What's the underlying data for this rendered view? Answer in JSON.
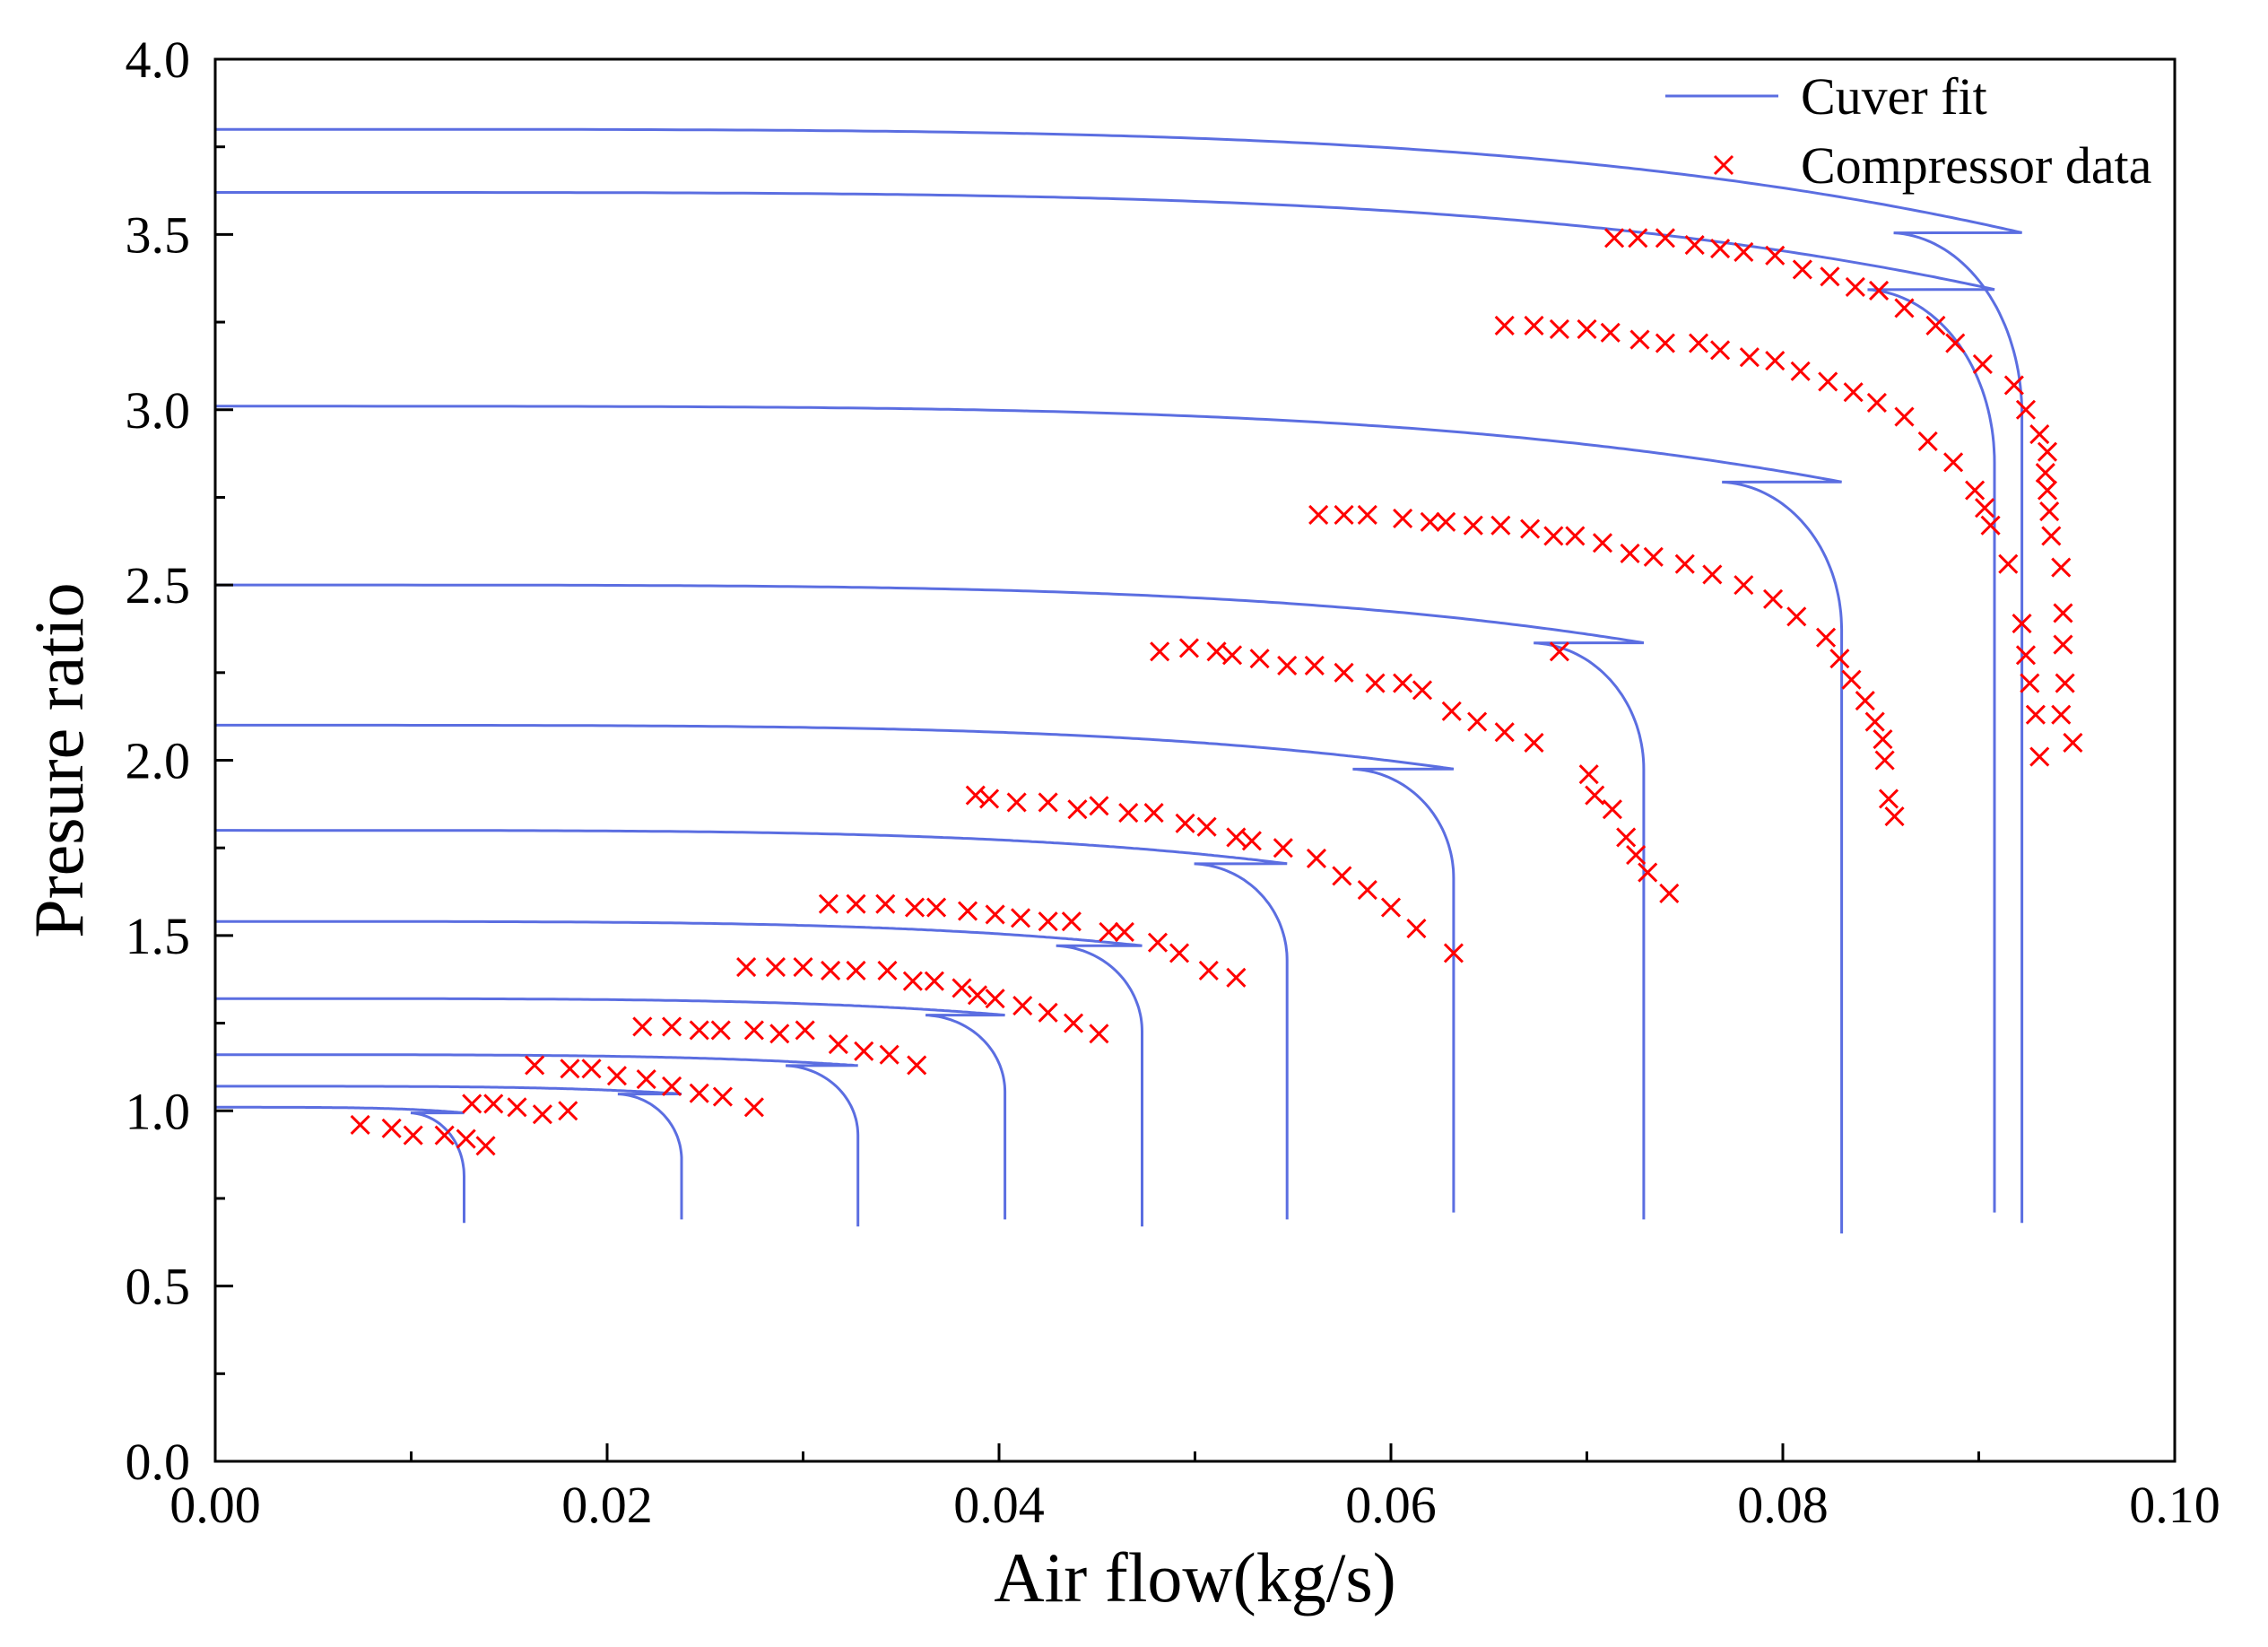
{
  "chart_data": {
    "type": "line",
    "title": "",
    "xlabel": "Air flow(kg/s)",
    "ylabel": "Presure ratio",
    "xlim": [
      0.0,
      0.1
    ],
    "ylim": [
      0.0,
      4.0
    ],
    "grid": false,
    "x_ticks": [
      "0.00",
      "0.02",
      "0.04",
      "0.06",
      "0.08",
      "0.10"
    ],
    "y_ticks": [
      "0.0",
      "0.5",
      "1.0",
      "1.5",
      "2.0",
      "2.5",
      "3.0",
      "3.5",
      "4.0"
    ],
    "legend": {
      "position": "top-right",
      "entries": [
        {
          "label": "Cuver fit",
          "marker": "line",
          "color": "#5b6ee1"
        },
        {
          "label": "Compressor data",
          "marker": "x",
          "color": "#ff0000"
        }
      ]
    },
    "series": [
      {
        "name": "Cuver fit",
        "style": "line",
        "color": "#5b6ee1",
        "curves": [
          {
            "start_pr": 1.01,
            "choke_flow": 0.0127,
            "end_pr": 0.68
          },
          {
            "start_pr": 1.07,
            "choke_flow": 0.0238,
            "end_pr": 0.69
          },
          {
            "start_pr": 1.16,
            "choke_flow": 0.0328,
            "end_pr": 0.67
          },
          {
            "start_pr": 1.32,
            "choke_flow": 0.0403,
            "end_pr": 0.69
          },
          {
            "start_pr": 1.54,
            "choke_flow": 0.0473,
            "end_pr": 0.67
          },
          {
            "start_pr": 1.8,
            "choke_flow": 0.0547,
            "end_pr": 0.69
          },
          {
            "start_pr": 2.1,
            "choke_flow": 0.0632,
            "end_pr": 0.71
          },
          {
            "start_pr": 2.5,
            "choke_flow": 0.0729,
            "end_pr": 0.69
          },
          {
            "start_pr": 3.01,
            "choke_flow": 0.083,
            "end_pr": 0.65
          },
          {
            "start_pr": 3.62,
            "choke_flow": 0.0908,
            "end_pr": 0.71
          },
          {
            "start_pr": 3.8,
            "choke_flow": 0.0922,
            "end_pr": 0.68
          }
        ]
      },
      {
        "name": "Compressor data",
        "style": "scatter",
        "marker": "x",
        "color": "#ff0000",
        "points": [
          [
            0.0074,
            0.96
          ],
          [
            0.009,
            0.95
          ],
          [
            0.0101,
            0.93
          ],
          [
            0.0117,
            0.93
          ],
          [
            0.0128,
            0.92
          ],
          [
            0.0138,
            0.9
          ],
          [
            0.0131,
            1.02
          ],
          [
            0.0142,
            1.02
          ],
          [
            0.0154,
            1.01
          ],
          [
            0.0167,
            0.99
          ],
          [
            0.018,
            1.0
          ],
          [
            0.0163,
            1.13
          ],
          [
            0.0181,
            1.12
          ],
          [
            0.0192,
            1.12
          ],
          [
            0.0205,
            1.1
          ],
          [
            0.022,
            1.09
          ],
          [
            0.0233,
            1.07
          ],
          [
            0.0247,
            1.05
          ],
          [
            0.0259,
            1.04
          ],
          [
            0.0275,
            1.01
          ],
          [
            0.0218,
            1.24
          ],
          [
            0.0233,
            1.24
          ],
          [
            0.0247,
            1.23
          ],
          [
            0.0258,
            1.23
          ],
          [
            0.0275,
            1.23
          ],
          [
            0.0288,
            1.22
          ],
          [
            0.0301,
            1.23
          ],
          [
            0.0318,
            1.19
          ],
          [
            0.0331,
            1.17
          ],
          [
            0.0344,
            1.16
          ],
          [
            0.0358,
            1.13
          ],
          [
            0.0271,
            1.41
          ],
          [
            0.0286,
            1.41
          ],
          [
            0.03,
            1.41
          ],
          [
            0.0314,
            1.4
          ],
          [
            0.0327,
            1.4
          ],
          [
            0.0343,
            1.4
          ],
          [
            0.0356,
            1.37
          ],
          [
            0.0367,
            1.37
          ],
          [
            0.0381,
            1.35
          ],
          [
            0.0389,
            1.33
          ],
          [
            0.0398,
            1.32
          ],
          [
            0.0412,
            1.3
          ],
          [
            0.0425,
            1.28
          ],
          [
            0.0438,
            1.25
          ],
          [
            0.0451,
            1.22
          ],
          [
            0.0313,
            1.59
          ],
          [
            0.0327,
            1.59
          ],
          [
            0.0342,
            1.59
          ],
          [
            0.0357,
            1.58
          ],
          [
            0.0368,
            1.58
          ],
          [
            0.0384,
            1.57
          ],
          [
            0.0398,
            1.56
          ],
          [
            0.0411,
            1.55
          ],
          [
            0.0425,
            1.54
          ],
          [
            0.0437,
            1.54
          ],
          [
            0.0456,
            1.51
          ],
          [
            0.0464,
            1.51
          ],
          [
            0.0481,
            1.48
          ],
          [
            0.0492,
            1.45
          ],
          [
            0.0507,
            1.4
          ],
          [
            0.0521,
            1.38
          ],
          [
            0.0388,
            1.9
          ],
          [
            0.0395,
            1.89
          ],
          [
            0.0409,
            1.88
          ],
          [
            0.0425,
            1.88
          ],
          [
            0.044,
            1.86
          ],
          [
            0.0451,
            1.87
          ],
          [
            0.0466,
            1.85
          ],
          [
            0.0479,
            1.85
          ],
          [
            0.0495,
            1.82
          ],
          [
            0.0506,
            1.81
          ],
          [
            0.0521,
            1.78
          ],
          [
            0.0529,
            1.77
          ],
          [
            0.0545,
            1.75
          ],
          [
            0.0562,
            1.72
          ],
          [
            0.0575,
            1.67
          ],
          [
            0.0588,
            1.63
          ],
          [
            0.06,
            1.58
          ],
          [
            0.0613,
            1.52
          ],
          [
            0.0632,
            1.45
          ],
          [
            0.0482,
            2.31
          ],
          [
            0.0497,
            2.32
          ],
          [
            0.0511,
            2.31
          ],
          [
            0.0519,
            2.3
          ],
          [
            0.0533,
            2.29
          ],
          [
            0.0547,
            2.27
          ],
          [
            0.0561,
            2.27
          ],
          [
            0.0576,
            2.25
          ],
          [
            0.0592,
            2.22
          ],
          [
            0.0606,
            2.22
          ],
          [
            0.0616,
            2.2
          ],
          [
            0.0631,
            2.14
          ],
          [
            0.0644,
            2.11
          ],
          [
            0.0658,
            2.08
          ],
          [
            0.0673,
            2.05
          ],
          [
            0.0686,
            2.31
          ],
          [
            0.0701,
            1.96
          ],
          [
            0.0704,
            1.9
          ],
          [
            0.0713,
            1.86
          ],
          [
            0.072,
            1.78
          ],
          [
            0.0725,
            1.73
          ],
          [
            0.0731,
            1.68
          ],
          [
            0.0742,
            1.62
          ],
          [
            0.0563,
            2.7
          ],
          [
            0.0576,
            2.7
          ],
          [
            0.0588,
            2.7
          ],
          [
            0.0606,
            2.69
          ],
          [
            0.062,
            2.68
          ],
          [
            0.0628,
            2.68
          ],
          [
            0.0642,
            2.67
          ],
          [
            0.0656,
            2.67
          ],
          [
            0.0671,
            2.66
          ],
          [
            0.0683,
            2.64
          ],
          [
            0.0694,
            2.64
          ],
          [
            0.0708,
            2.62
          ],
          [
            0.0722,
            2.59
          ],
          [
            0.0734,
            2.58
          ],
          [
            0.075,
            2.56
          ],
          [
            0.0764,
            2.53
          ],
          [
            0.078,
            2.5
          ],
          [
            0.0795,
            2.46
          ],
          [
            0.0807,
            2.41
          ],
          [
            0.0822,
            2.35
          ],
          [
            0.0829,
            2.29
          ],
          [
            0.0835,
            2.23
          ],
          [
            0.0842,
            2.17
          ],
          [
            0.0847,
            2.11
          ],
          [
            0.0851,
            2.06
          ],
          [
            0.0852,
            2.0
          ],
          [
            0.0854,
            1.89
          ],
          [
            0.0857,
            1.84
          ],
          [
            0.0658,
            3.24
          ],
          [
            0.0673,
            3.24
          ],
          [
            0.0686,
            3.23
          ],
          [
            0.07,
            3.23
          ],
          [
            0.0712,
            3.22
          ],
          [
            0.0727,
            3.2
          ],
          [
            0.074,
            3.19
          ],
          [
            0.0757,
            3.19
          ],
          [
            0.0768,
            3.17
          ],
          [
            0.0783,
            3.15
          ],
          [
            0.0796,
            3.14
          ],
          [
            0.0809,
            3.11
          ],
          [
            0.0823,
            3.08
          ],
          [
            0.0836,
            3.05
          ],
          [
            0.0848,
            3.02
          ],
          [
            0.0862,
            2.98
          ],
          [
            0.0874,
            2.91
          ],
          [
            0.0887,
            2.85
          ],
          [
            0.0898,
            2.77
          ],
          [
            0.0903,
            2.72
          ],
          [
            0.0906,
            2.67
          ],
          [
            0.0915,
            2.56
          ],
          [
            0.0922,
            2.39
          ],
          [
            0.0924,
            2.3
          ],
          [
            0.0926,
            2.22
          ],
          [
            0.0929,
            2.13
          ],
          [
            0.0931,
            2.01
          ],
          [
            0.0714,
            3.49
          ],
          [
            0.0726,
            3.49
          ],
          [
            0.074,
            3.49
          ],
          [
            0.0755,
            3.47
          ],
          [
            0.0768,
            3.46
          ],
          [
            0.078,
            3.45
          ],
          [
            0.0796,
            3.44
          ],
          [
            0.081,
            3.4
          ],
          [
            0.0824,
            3.38
          ],
          [
            0.0837,
            3.35
          ],
          [
            0.0849,
            3.34
          ],
          [
            0.0862,
            3.29
          ],
          [
            0.0878,
            3.24
          ],
          [
            0.0888,
            3.19
          ],
          [
            0.0902,
            3.13
          ],
          [
            0.0918,
            3.07
          ],
          [
            0.0924,
            3.0
          ],
          [
            0.0931,
            2.93
          ],
          [
            0.0935,
            2.88
          ],
          [
            0.0934,
            2.82
          ],
          [
            0.0935,
            2.77
          ],
          [
            0.0936,
            2.71
          ],
          [
            0.0937,
            2.64
          ],
          [
            0.0942,
            2.55
          ],
          [
            0.0943,
            2.42
          ],
          [
            0.0943,
            2.33
          ],
          [
            0.0944,
            2.22
          ],
          [
            0.0942,
            2.13
          ],
          [
            0.0948,
            2.05
          ]
        ]
      }
    ]
  }
}
